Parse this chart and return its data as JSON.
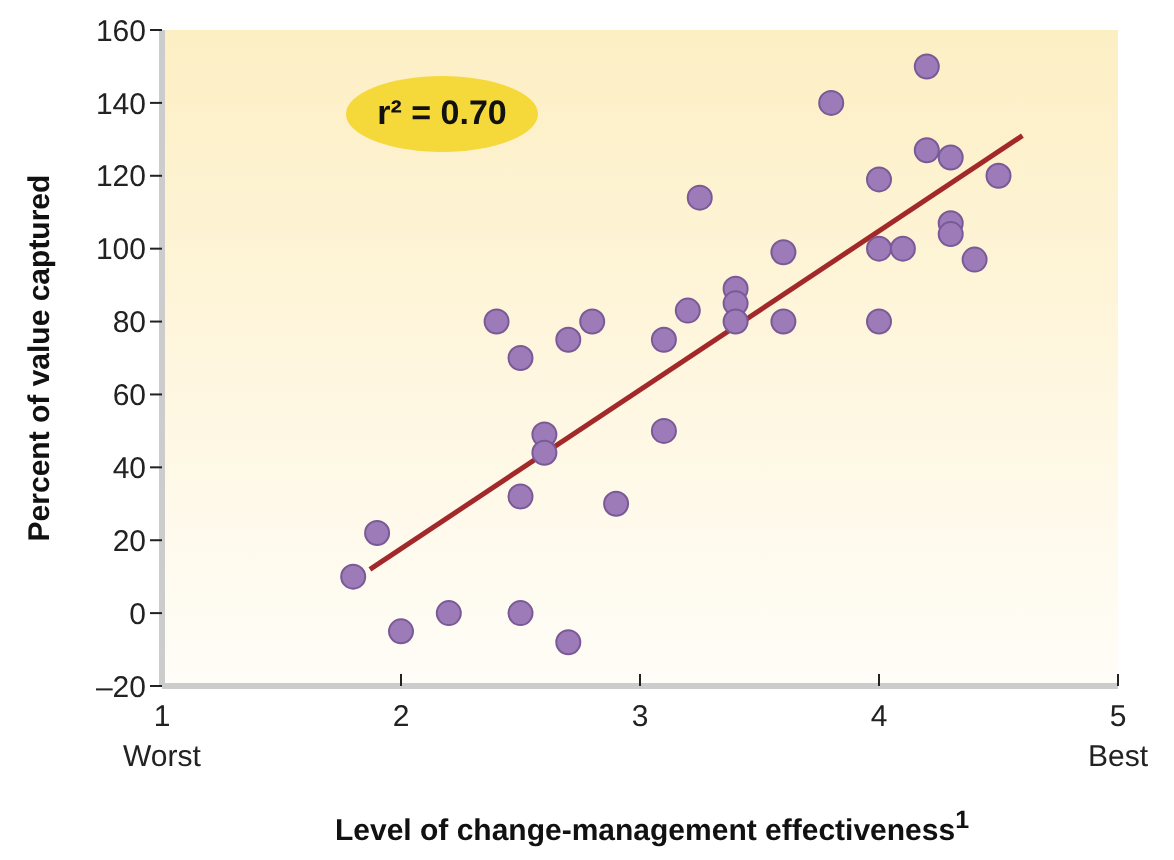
{
  "chart_data": {
    "type": "scatter",
    "xlabel": "Level of change-management effectiveness$^{1}$",
    "ylabel": "Percent of value captured",
    "annotations": [
      "r² = 0.70"
    ],
    "xlim": [
      1,
      5
    ],
    "xticks": [
      {
        "value": 1,
        "label": "1\nWorst"
      },
      2,
      3,
      4,
      {
        "value": 5,
        "label": "5\nBest"
      }
    ],
    "ylim": [
      -20,
      160
    ],
    "yticks": [
      {
        "value": -20,
        "label": "–20"
      },
      0,
      20,
      40,
      60,
      80,
      100,
      120,
      140,
      160
    ],
    "grid": false,
    "legend": false,
    "marker": "circle",
    "series": [
      {
        "color": "#9c7bb8",
        "x": [
          1.8,
          1.9,
          2.0,
          2.2,
          2.4,
          2.5,
          2.5,
          2.5,
          2.6,
          2.6,
          2.7,
          2.7,
          2.8,
          2.9,
          3.1,
          3.1,
          3.2,
          3.25,
          3.4,
          3.4,
          3.4,
          3.6,
          3.6,
          3.8,
          4.0,
          4.0,
          4.0,
          4.1,
          4.2,
          4.2,
          4.3,
          4.3,
          4.3,
          4.4,
          4.5
        ],
        "values": [
          10,
          22,
          -5,
          0,
          80,
          70,
          32,
          0,
          49,
          44,
          75,
          -8,
          80,
          30,
          75,
          50,
          83,
          114,
          89,
          85,
          80,
          99,
          80,
          140,
          119,
          100,
          80,
          100,
          150,
          127,
          125,
          107,
          104,
          97,
          120
        ]
      },
      {
        "type": "line",
        "color": "#a3282a",
        "x": [
          1.87,
          4.6
        ],
        "values": [
          12,
          131
        ],
        "marker": "none"
      }
    ]
  }
}
